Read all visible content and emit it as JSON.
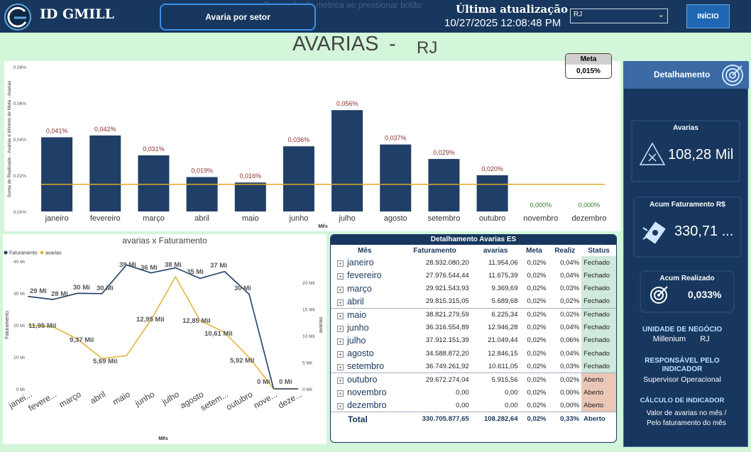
{
  "header": {
    "logo_text": "ID GMILL",
    "sector_button": "Avaria por setor",
    "ghost_text": "Descrição da métrica ao pressionar botão",
    "update_title": "Última atualização",
    "update_value": "10/27/2025 12:08:48 PM",
    "region_select": "RJ",
    "home_button": "INÍCIO"
  },
  "page_title": {
    "main": "AVARIAS",
    "dash": "-",
    "region": "RJ"
  },
  "meta_card": {
    "label": "Meta",
    "value": "0,015%"
  },
  "bar_chart": {
    "ylabel": "Soma de Realizado - Avarias e Mínimo de Meta - Avarias",
    "xlabel": "Mês"
  },
  "line_chart": {
    "title": "avarias x Faturamento",
    "ylabel_left": "Faturamento",
    "ylabel_right": "avarias",
    "xlabel": "Mês"
  },
  "chart_data": [
    {
      "type": "bar",
      "title": "",
      "xlabel": "Mês",
      "ylabel": "Soma de Realizado - Avarias e Mínimo de Meta - Avarias",
      "categories": [
        "janeiro",
        "fevereiro",
        "março",
        "abril",
        "maio",
        "junho",
        "julho",
        "agosto",
        "setembro",
        "outubro",
        "novembro",
        "dezembro"
      ],
      "series": [
        {
          "name": "Realizado - Avarias",
          "values": [
            0.041,
            0.042,
            0.031,
            0.019,
            0.016,
            0.036,
            0.056,
            0.037,
            0.029,
            0.02,
            0.0,
            0.0
          ],
          "labels": [
            "0,041%",
            "0,042%",
            "0,031%",
            "0,019%",
            "0,016%",
            "0,036%",
            "0,056%",
            "0,037%",
            "0,029%",
            "0,020%",
            "0,000%",
            "0,000%"
          ]
        },
        {
          "name": "Meta - Avarias",
          "values": [
            0.015,
            0.015,
            0.015,
            0.015,
            0.015,
            0.015,
            0.015,
            0.015,
            0.015,
            0.015,
            0.015,
            0.015
          ]
        }
      ],
      "ylim": [
        0,
        0.08
      ],
      "yticks": [
        "0,00%",
        "0,02%",
        "0,04%",
        "0,06%",
        "0,08%"
      ],
      "colors": {
        "bar": "#1f3f66",
        "meta": "#e2a92a",
        "label": "#8b2e2e",
        "zero_label": "#2e7d32"
      }
    },
    {
      "type": "line",
      "title": "avarias x Faturamento",
      "xlabel": "Mês",
      "categories": [
        "janei...",
        "fevere...",
        "março",
        "abril",
        "maio",
        "junho",
        "julho",
        "agosto",
        "setem...",
        "outubro",
        "nove...",
        "deze..."
      ],
      "series": [
        {
          "name": "Faturamento",
          "axis": "left",
          "values": [
            28.93,
            27.98,
            29.92,
            29.82,
            38.82,
            36.32,
            37.91,
            34.59,
            36.75,
            29.67,
            0,
            0
          ],
          "labels": [
            "29 Mi",
            "28 Mi",
            "30 Mi",
            "30 Mi",
            "39 Mi",
            "36 Mi",
            "38 Mi",
            "35 Mi",
            "37 Mi",
            "30 Mi",
            "0 Mi",
            "0 Mi"
          ]
        },
        {
          "name": "avarias",
          "axis": "right",
          "values": [
            11.95,
            11.68,
            9.37,
            5.69,
            6.23,
            12.95,
            21.05,
            12.85,
            10.61,
            5.92,
            0,
            0
          ],
          "labels": [
            "11,95 Mil",
            "",
            "9,37 Mil",
            "5,69 Mil",
            "",
            "12,95 Mil",
            "",
            "12,85 Mil",
            "10,61 Mil",
            "5,92 Mil",
            "",
            ""
          ]
        }
      ],
      "ylim_left": [
        0,
        40
      ],
      "yticks_left": [
        "0 Mi",
        "10 Mi",
        "20 Mi",
        "30 Mi",
        "40 Mi"
      ],
      "ylim_right": [
        0,
        24
      ],
      "yticks_right": [
        "0 Mil",
        "5 Mil",
        "10 Mil",
        "15 Mil",
        "20 Mil"
      ],
      "colors": {
        "Faturamento": "#1f3f66",
        "avarias": "#e2b43a"
      }
    }
  ],
  "table": {
    "title": "Detalhamento Avarias ES",
    "columns": [
      "Mês",
      "Faturamento",
      "avarias",
      "Meta",
      "Realiz",
      "Status"
    ],
    "rows": [
      [
        "janeiro",
        "28.932.080,20",
        "11.954,06",
        "0,02%",
        "0,04%",
        "Fechado"
      ],
      [
        "fevereiro",
        "27.976.544,44",
        "11.675,39",
        "0,02%",
        "0,04%",
        "Fechado"
      ],
      [
        "março",
        "29.921.543,93",
        "9.369,69",
        "0,02%",
        "0,03%",
        "Fechado"
      ],
      [
        "abril",
        "29.815.315,05",
        "5.689,68",
        "0,02%",
        "0,02%",
        "Fechado"
      ],
      [
        "maio",
        "38.821.279,59",
        "6.225,34",
        "0,02%",
        "0,02%",
        "Fechado"
      ],
      [
        "junho",
        "36.316.554,89",
        "12.946,28",
        "0,02%",
        "0,04%",
        "Fechado"
      ],
      [
        "julho",
        "37.912.151,39",
        "21.049,44",
        "0,02%",
        "0,06%",
        "Fechado"
      ],
      [
        "agosto",
        "34.588.872,20",
        "12.846,15",
        "0,02%",
        "0,04%",
        "Fechado"
      ],
      [
        "setembro",
        "36.749.261,92",
        "10.611,05",
        "0,02%",
        "0,03%",
        "Fechado"
      ],
      [
        "outubro",
        "29.672.274,04",
        "5.915,56",
        "0,02%",
        "0,02%",
        "Aberto"
      ],
      [
        "novembro",
        "0,00",
        "0,00",
        "0,02%",
        "0,00%",
        "Aberto"
      ],
      [
        "dezembro",
        "0,00",
        "0,00",
        "0,02%",
        "0,00%",
        "Aberto"
      ]
    ],
    "total": [
      "Total",
      "330.705.877,65",
      "108.282,64",
      "0,02%",
      "0,33%",
      "Aberto"
    ],
    "colors": {
      "fechado": "#cfe9dc",
      "aberto": "#ebc7b8"
    }
  },
  "sidebar": {
    "title": "Detalhamento",
    "avarias": {
      "label": "Avarias",
      "value": "108,28 Mil"
    },
    "faturamento": {
      "label": "Acum Faturamento R$",
      "value": "330,71 ..."
    },
    "realizado": {
      "label": "Acum Realizado",
      "value": "0,033%"
    },
    "unidade": {
      "title": "UNIDADE DE NEGÓCIO",
      "name": "Millenium",
      "region": "RJ"
    },
    "responsavel": {
      "title_line1": "RESPONSÁVEL PELO",
      "title_line2": "INDICADOR",
      "value": "Supervisor Operacional"
    },
    "calculo": {
      "title": "CÁLCULO DE INDICADOR",
      "line1": "Valor de avarias no mês /",
      "line2": "Pelo faturamento do mês"
    }
  }
}
